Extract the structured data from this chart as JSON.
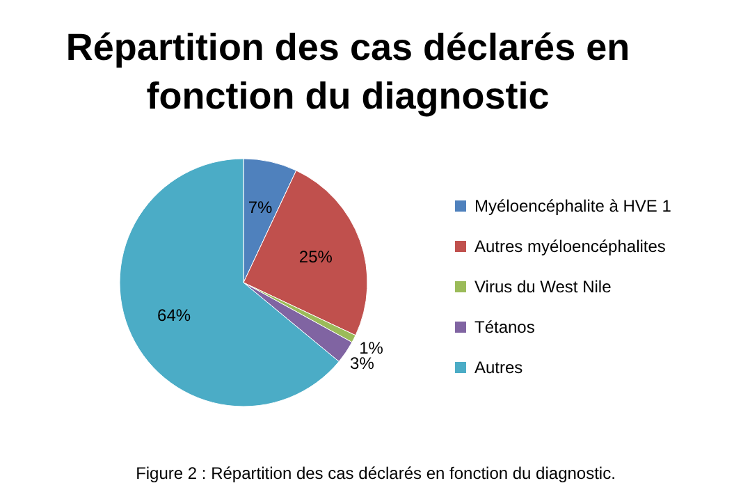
{
  "chart_data": {
    "type": "pie",
    "title": "Répartition des cas déclarés en fonction du diagnostic",
    "categories": [
      "Myéloencéphalite à HVE 1",
      "Autres myéloencéphalites",
      "Virus du West Nile",
      "Tétanos",
      "Autres"
    ],
    "values": [
      7,
      25,
      1,
      3,
      64
    ],
    "value_labels": [
      "7%",
      "25%",
      "1%",
      "3%",
      "64%"
    ],
    "colors": [
      "#4f81bd",
      "#c0504d",
      "#9bbb59",
      "#8064a2",
      "#4bacc6"
    ],
    "legend": "right",
    "annotations": [
      "Figure 2 : Répartition des cas déclarés en fonction du diagnostic."
    ]
  }
}
